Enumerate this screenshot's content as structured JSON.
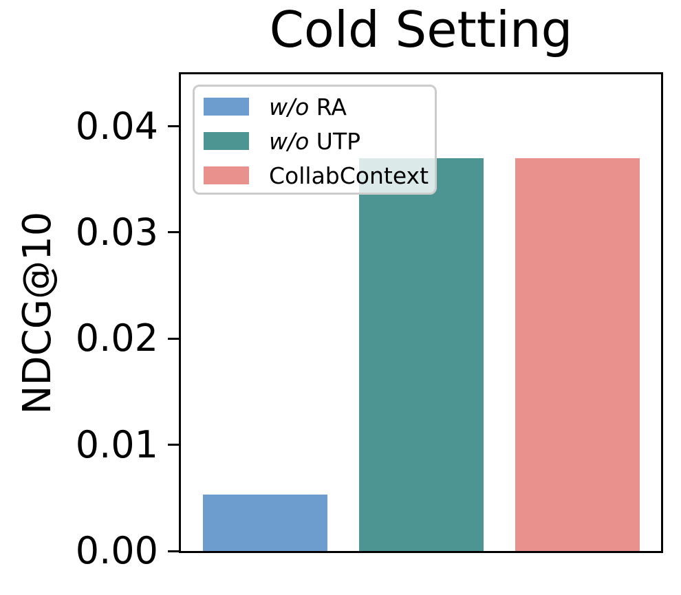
{
  "title": "Cold Setting",
  "ylabel": "NDCG@10",
  "chart_data": {
    "type": "bar",
    "categories": [
      "w/o RA",
      "w/o UTP",
      "CollabContext"
    ],
    "values": [
      0.0053,
      0.037,
      0.037
    ],
    "colors": [
      "#6c9dce",
      "#4c9593",
      "#e8918d"
    ],
    "title": "Cold Setting",
    "xlabel": "",
    "ylabel": "NDCG@10",
    "ylim": [
      0,
      0.0449
    ],
    "yticks": [
      "0.00",
      "0.01",
      "0.02",
      "0.03",
      "0.04"
    ],
    "grid": false,
    "legend_position": "upper left",
    "x_tick_labels_visible": false
  },
  "legend": {
    "items": [
      {
        "italic": "w/o",
        "rest": " RA",
        "color": "#6c9dce"
      },
      {
        "italic": "w/o",
        "rest": " UTP",
        "color": "#4c9593"
      },
      {
        "italic": "",
        "rest": "CollabContext",
        "color": "#e8918d"
      }
    ]
  }
}
